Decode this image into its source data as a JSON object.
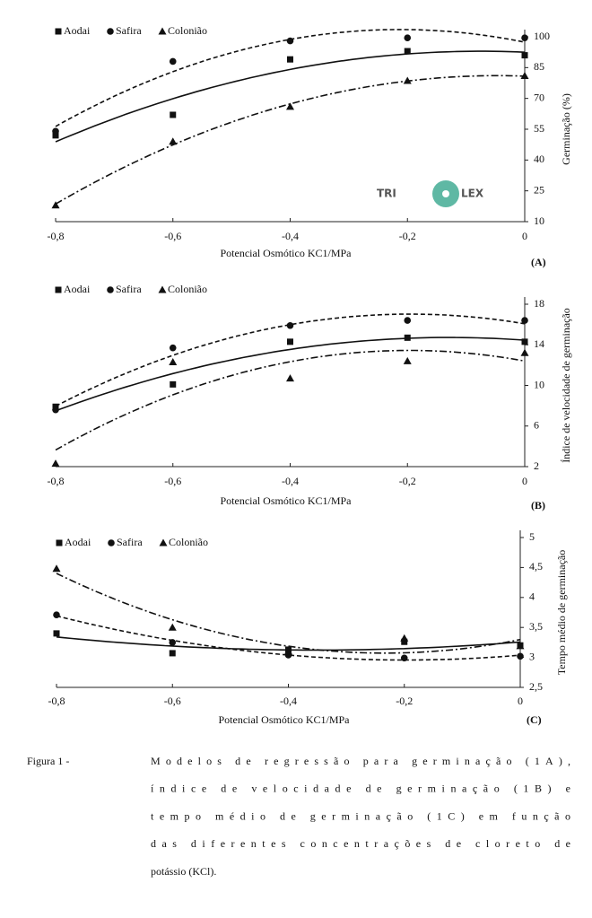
{
  "chart_data": [
    {
      "type": "scatter",
      "trendline": "quadratic",
      "xlabel": "Potencial Osmótico KC1/MPa",
      "ylabel": "Germinação (%)",
      "panel_label": "(A)",
      "x": [
        -0.8,
        -0.6,
        -0.4,
        -0.2,
        0
      ],
      "xlim": [
        -0.8,
        0
      ],
      "xticks": [
        {
          "value": -0.8,
          "label": "-0,8"
        },
        {
          "value": -0.6,
          "label": "-0,6"
        },
        {
          "value": -0.4,
          "label": "-0,4"
        },
        {
          "value": -0.2,
          "label": "-0,2"
        },
        0
      ],
      "ylim": [
        10,
        100
      ],
      "yticks": [
        10,
        25,
        40,
        55,
        70,
        85,
        100
      ],
      "series": [
        {
          "name": "Aodai",
          "color": "#111111",
          "marker": "square",
          "line_style": "solid",
          "values": [
            52,
            62,
            89,
            93,
            91
          ]
        },
        {
          "name": "Safira",
          "color": "#111111",
          "marker": "circle",
          "line_style": "dashed",
          "values": [
            54,
            88,
            98,
            99.5,
            99.5
          ]
        },
        {
          "name": "Colonião",
          "color": "#111111",
          "marker": "triangle",
          "line_style": "dashdot",
          "values": [
            18,
            49,
            66,
            78.6,
            81
          ]
        }
      ],
      "watermark": [
        "TRI",
        "LEX"
      ]
    },
    {
      "type": "scatter",
      "trendline": "quadratic",
      "xlabel": "Potencial Osmótico KC1/MPa",
      "ylabel": "Índice de velocidade de germinação",
      "panel_label": "(B)",
      "x": [
        -0.8,
        -0.6,
        -0.4,
        -0.2,
        0
      ],
      "xlim": [
        -0.8,
        0
      ],
      "xticks": [
        {
          "value": -0.8,
          "label": "-0,8"
        },
        {
          "value": -0.6,
          "label": "-0,6"
        },
        {
          "value": -0.4,
          "label": "-0,4"
        },
        {
          "value": -0.2,
          "label": "-0,2"
        },
        0
      ],
      "ylim": [
        2,
        18
      ],
      "yticks": [
        2,
        6,
        10,
        14,
        18
      ],
      "series": [
        {
          "name": "Aodai",
          "color": "#111111",
          "marker": "square",
          "line_style": "solid",
          "values": [
            7.9,
            10.1,
            14.3,
            14.7,
            14.3
          ]
        },
        {
          "name": "Safira",
          "color": "#111111",
          "marker": "circle",
          "line_style": "dashed",
          "values": [
            7.6,
            13.7,
            15.9,
            16.4,
            16.4
          ]
        },
        {
          "name": "Colonião",
          "color": "#111111",
          "marker": "triangle",
          "line_style": "dashdot",
          "values": [
            2.3,
            12.3,
            10.7,
            12.4,
            13.2
          ]
        }
      ]
    },
    {
      "type": "scatter",
      "trendline": "quadratic",
      "xlabel": "Potencial Osmótico KC1/MPa",
      "ylabel": "Tempo médio de germinação",
      "panel_label": "(C)",
      "x": [
        -0.8,
        -0.6,
        -0.4,
        -0.2,
        0
      ],
      "xlim": [
        -0.8,
        0
      ],
      "xticks": [
        {
          "value": -0.8,
          "label": "-0,8"
        },
        {
          "value": -0.6,
          "label": "-0,6"
        },
        {
          "value": -0.4,
          "label": "-0,4"
        },
        {
          "value": -0.2,
          "label": "-0,2"
        },
        0
      ],
      "ylim": [
        2.5,
        5
      ],
      "yticks": [
        {
          "value": 2.5,
          "label": "2,5"
        },
        3,
        {
          "value": 3.5,
          "label": "3,5"
        },
        4,
        {
          "value": 4.5,
          "label": "4,5"
        },
        5
      ],
      "series": [
        {
          "name": "Aodai",
          "color": "#111111",
          "marker": "square",
          "line_style": "solid",
          "values": [
            3.4,
            3.07,
            3.13,
            3.26,
            3.2
          ]
        },
        {
          "name": "Safira",
          "color": "#111111",
          "marker": "circle",
          "line_style": "dashed",
          "values": [
            3.71,
            3.25,
            3.04,
            2.99,
            3.02
          ]
        },
        {
          "name": "Colonião",
          "color": "#111111",
          "marker": "triangle",
          "line_style": "dashdot",
          "values": [
            4.48,
            3.5,
            3.1,
            3.32,
            3.19
          ]
        }
      ]
    }
  ],
  "caption": {
    "label": "Figura 1 -",
    "lines": [
      "Modelos de regressão para germinação (1A),",
      "índice de velocidade de germinação (1B) e",
      "tempo médio de germinação (1C) em função",
      "das diferentes concentrações de cloreto de",
      "potássio (KCl)."
    ]
  }
}
